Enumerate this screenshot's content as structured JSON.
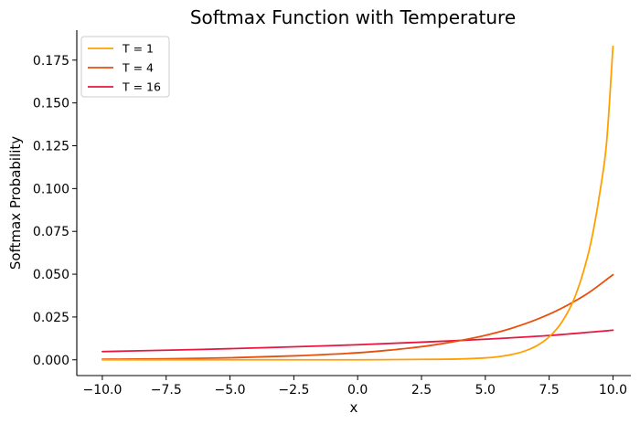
{
  "chart_data": {
    "type": "line",
    "title": "Softmax Function with Temperature",
    "xlabel": "x",
    "ylabel": "Softmax Probability",
    "xlim": [
      -11.0,
      10.7
    ],
    "ylim": [
      -0.0092,
      0.1925
    ],
    "x_ticks": [
      -10.0,
      -7.5,
      -5.0,
      -2.5,
      0.0,
      2.5,
      5.0,
      7.5,
      10.0
    ],
    "x_tick_labels": [
      "−10.0",
      "−7.5",
      "−5.0",
      "−2.5",
      "0.0",
      "2.5",
      "5.0",
      "7.5",
      "10.0"
    ],
    "y_ticks": [
      0.0,
      0.025,
      0.05,
      0.075,
      0.1,
      0.125,
      0.15,
      0.175
    ],
    "y_tick_labels": [
      "0.000",
      "0.025",
      "0.050",
      "0.075",
      "0.100",
      "0.125",
      "0.150",
      "0.175"
    ],
    "grid": false,
    "legend_position": "top-left",
    "series": [
      {
        "name": "T = 1",
        "color": "#FFA000",
        "points": [
          [
            -10,
            0.0
          ],
          [
            -5,
            0.0
          ],
          [
            0,
            0.0
          ],
          [
            2,
            0.0002
          ],
          [
            4,
            0.0005
          ],
          [
            5,
            0.0011
          ],
          [
            5.5,
            0.0018
          ],
          [
            6,
            0.003
          ],
          [
            6.5,
            0.0049
          ],
          [
            7,
            0.0081
          ],
          [
            7.5,
            0.0134
          ],
          [
            8,
            0.0221
          ],
          [
            8.5,
            0.0364
          ],
          [
            9,
            0.06
          ],
          [
            9.25,
            0.077
          ],
          [
            9.5,
            0.099
          ],
          [
            9.75,
            0.127
          ],
          [
            10,
            0.183
          ]
        ]
      },
      {
        "name": "T = 4",
        "color": "#E8500A",
        "points": [
          [
            -10,
            0.0003
          ],
          [
            -7.5,
            0.0006
          ],
          [
            -5,
            0.0012
          ],
          [
            -2.5,
            0.0023
          ],
          [
            0,
            0.0041
          ],
          [
            1,
            0.0053
          ],
          [
            2,
            0.0068
          ],
          [
            3,
            0.0087
          ],
          [
            4,
            0.0112
          ],
          [
            5,
            0.0143
          ],
          [
            6,
            0.0183
          ],
          [
            7,
            0.0235
          ],
          [
            8,
            0.0302
          ],
          [
            9,
            0.0387
          ],
          [
            10,
            0.0497
          ]
        ]
      },
      {
        "name": "T = 16",
        "color": "#E8173F",
        "points": [
          [
            -10,
            0.0048
          ],
          [
            -7.5,
            0.0056
          ],
          [
            -5,
            0.0065
          ],
          [
            -2.5,
            0.0076
          ],
          [
            0,
            0.0088
          ],
          [
            2.5,
            0.0103
          ],
          [
            5,
            0.012
          ],
          [
            7.5,
            0.0142
          ],
          [
            10,
            0.0173
          ]
        ]
      }
    ]
  }
}
